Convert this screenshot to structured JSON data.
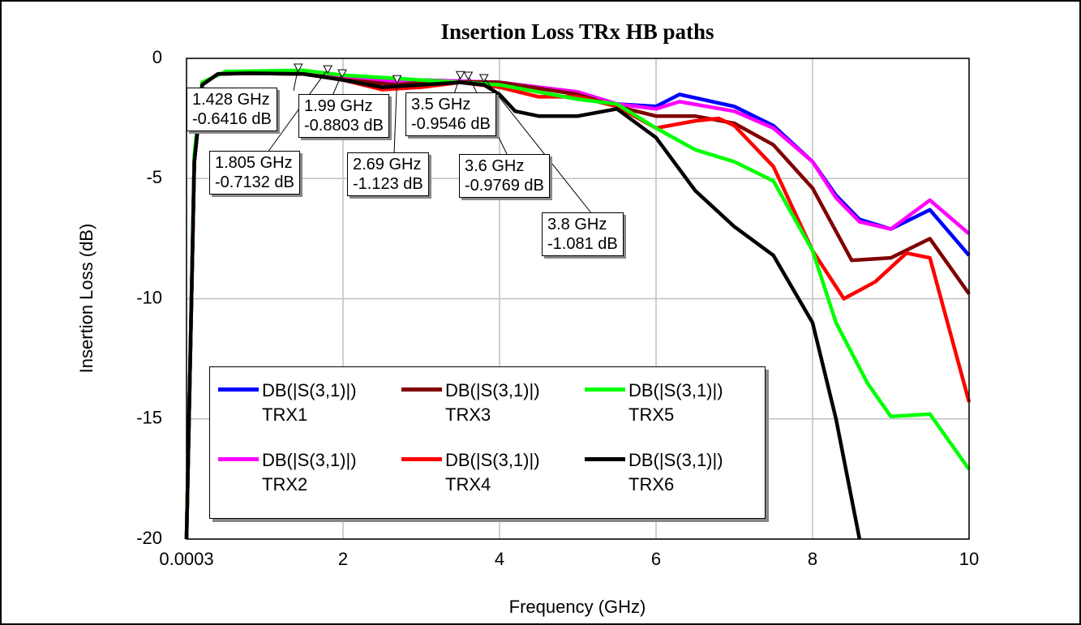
{
  "chart_data": {
    "type": "line",
    "title": "Insertion Loss TRx HB paths",
    "xlabel": "Frequency (GHz)",
    "ylabel": "Insertion Loss (dB)",
    "xlim": [
      0.0003,
      10
    ],
    "ylim": [
      -20,
      0
    ],
    "xticks": [
      0.0003,
      2,
      4,
      6,
      8,
      10
    ],
    "yticks": [
      0,
      -5,
      -10,
      -15,
      -20
    ],
    "grid": true,
    "legend": "lower left",
    "series": [
      {
        "name": "DB(|S(3,1)|) TRX1",
        "color": "#0000ff",
        "x": [
          0.0003,
          0.1,
          0.2,
          0.4,
          0.8,
          1.428,
          2,
          2.5,
          3,
          3.5,
          4,
          4.5,
          5,
          5.5,
          6,
          6.3,
          7,
          7.5,
          8,
          8.3,
          8.6,
          9,
          9.5,
          10
        ],
        "values": [
          -20,
          -4.3,
          -1.1,
          -0.65,
          -0.6,
          -0.6,
          -0.75,
          -0.95,
          -0.9,
          -0.95,
          -1.0,
          -1.2,
          -1.4,
          -1.9,
          -2.0,
          -1.5,
          -2.0,
          -2.8,
          -4.3,
          -5.7,
          -6.7,
          -7.1,
          -6.3,
          -8.2
        ]
      },
      {
        "name": "DB(|S(3,1)|) TRX2",
        "color": "#ff00ff",
        "x": [
          0.0003,
          0.1,
          0.2,
          0.4,
          0.8,
          1.428,
          2,
          2.5,
          3,
          3.5,
          4,
          4.5,
          5,
          5.5,
          6,
          6.3,
          7,
          7.5,
          8,
          8.3,
          8.6,
          9,
          9.5,
          10
        ],
        "values": [
          -20,
          -4.3,
          -1.1,
          -0.65,
          -0.6,
          -0.6,
          -0.75,
          -0.95,
          -0.9,
          -0.95,
          -1.0,
          -1.2,
          -1.4,
          -1.9,
          -2.1,
          -1.8,
          -2.2,
          -2.9,
          -4.3,
          -5.8,
          -6.8,
          -7.1,
          -5.9,
          -7.3
        ]
      },
      {
        "name": "DB(|S(3,1)|) TRX3",
        "color": "#800000",
        "x": [
          0.0003,
          0.1,
          0.2,
          0.4,
          0.8,
          1.5,
          1.99,
          2.69,
          3,
          3.6,
          4,
          5,
          5.5,
          6,
          6.5,
          7,
          7.5,
          8,
          8.5,
          9,
          9.5,
          10
        ],
        "values": [
          -20,
          -4.3,
          -1.1,
          -0.65,
          -0.62,
          -0.65,
          -0.88,
          -1.1,
          -1.0,
          -0.98,
          -1.0,
          -1.5,
          -2.0,
          -2.4,
          -2.4,
          -2.7,
          -3.6,
          -5.4,
          -8.4,
          -8.3,
          -7.5,
          -9.8
        ]
      },
      {
        "name": "DB(|S(3,1)|) TRX4",
        "color": "#ff0000",
        "x": [
          0.0003,
          0.1,
          0.2,
          0.4,
          0.8,
          1.5,
          2,
          2.5,
          3,
          3.5,
          4,
          4.5,
          5,
          5.5,
          6,
          6.5,
          6.8,
          7,
          7.5,
          8,
          8.4,
          8.8,
          9.2,
          9.5,
          10
        ],
        "values": [
          -20,
          -4.3,
          -1.1,
          -0.65,
          -0.62,
          -0.65,
          -0.9,
          -1.3,
          -1.2,
          -1.0,
          -1.2,
          -1.6,
          -1.6,
          -2.0,
          -2.9,
          -2.6,
          -2.5,
          -2.8,
          -4.5,
          -8.0,
          -10.0,
          -9.3,
          -8.1,
          -8.3,
          -14.3
        ]
      },
      {
        "name": "DB(|S(3,1)|) TRX5",
        "color": "#00ff00",
        "x": [
          0.0003,
          0.1,
          0.2,
          0.5,
          1.5,
          2,
          3,
          4,
          5,
          5.5,
          6,
          6.5,
          7,
          7.5,
          8,
          8.3,
          8.7,
          9,
          9.5,
          10
        ],
        "values": [
          -20,
          -4.0,
          -1.0,
          -0.55,
          -0.5,
          -0.7,
          -0.9,
          -1.1,
          -1.7,
          -1.9,
          -2.9,
          -3.8,
          -4.3,
          -5.1,
          -8.0,
          -11.0,
          -13.5,
          -14.9,
          -14.8,
          -17.1
        ]
      },
      {
        "name": "DB(|S(3,1)|) TRX6",
        "color": "#000000",
        "x": [
          0.0003,
          0.1,
          0.2,
          0.4,
          0.8,
          1.5,
          2,
          2.5,
          3,
          3.5,
          3.8,
          4,
          4.2,
          4.5,
          5,
          5.5,
          6,
          6.5,
          7,
          7.5,
          8,
          8.3,
          8.6
        ],
        "values": [
          -20,
          -4.3,
          -1.1,
          -0.65,
          -0.62,
          -0.65,
          -0.9,
          -1.2,
          -1.1,
          -1.0,
          -1.1,
          -1.5,
          -2.2,
          -2.4,
          -2.4,
          -2.1,
          -3.3,
          -5.5,
          -7.0,
          -8.2,
          -11.0,
          -15.0,
          -20
        ]
      }
    ],
    "markers": [
      {
        "x": 1.428,
        "y": -0.6416,
        "x_label": "1.428 GHz",
        "y_label": "-0.6416 dB"
      },
      {
        "x": 1.805,
        "y": -0.7132,
        "x_label": "1.805 GHz",
        "y_label": "-0.7132 dB"
      },
      {
        "x": 1.99,
        "y": -0.8803,
        "x_label": "1.99 GHz",
        "y_label": "-0.8803 dB"
      },
      {
        "x": 2.69,
        "y": -1.123,
        "x_label": "2.69 GHz",
        "y_label": "-1.123 dB"
      },
      {
        "x": 3.5,
        "y": -0.9546,
        "x_label": "3.5 GHz",
        "y_label": "-0.9546 dB"
      },
      {
        "x": 3.6,
        "y": -0.9769,
        "x_label": "3.6 GHz",
        "y_label": "-0.9769 dB"
      },
      {
        "x": 3.8,
        "y": -1.081,
        "x_label": "3.8 GHz",
        "y_label": "-1.081 dB"
      }
    ]
  }
}
